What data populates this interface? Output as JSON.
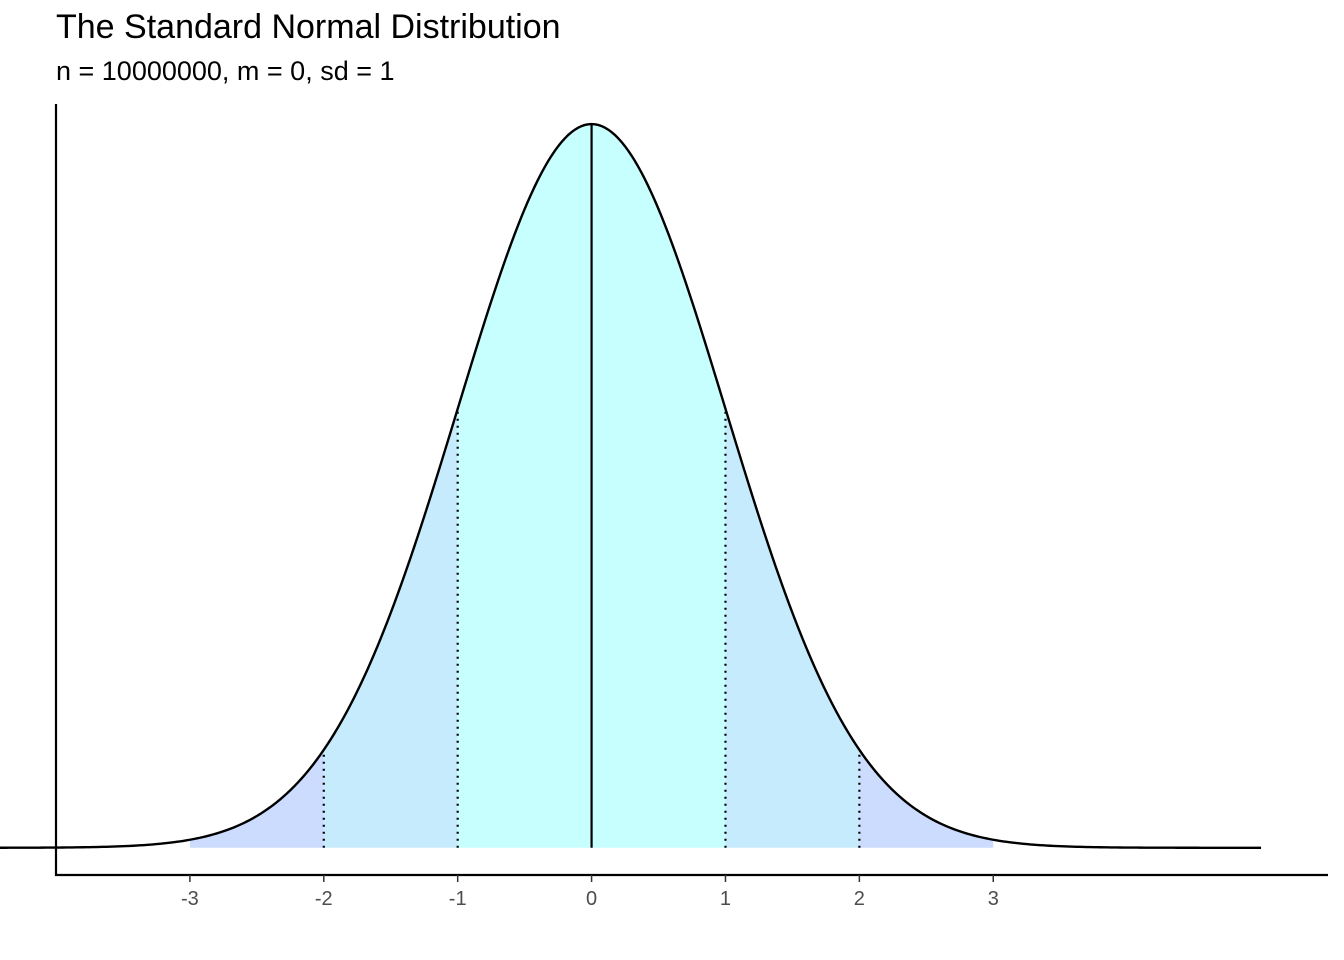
{
  "chart_data": {
    "type": "area",
    "title": "The Standard Normal Distribution",
    "subtitle": "n = 10000000, m = 0, sd = 1",
    "xlabel": "",
    "ylabel": "",
    "x_ticks": [
      "-3",
      "-2",
      "-1",
      "0",
      "1",
      "2",
      "3"
    ],
    "x_tick_values": [
      -3,
      -2,
      -1,
      0,
      1,
      2,
      3
    ],
    "xlim": [
      -4.0,
      5.5
    ],
    "ylim": [
      -0.015,
      0.41
    ],
    "curve": {
      "mean": 0,
      "sd": 1,
      "x_range": [
        -5,
        5
      ],
      "peak_density": 0.399
    },
    "shaded_regions": [
      {
        "from": -3,
        "to": -2,
        "color": "#cbdcff"
      },
      {
        "from": -2,
        "to": -1,
        "color": "#c6ebfd"
      },
      {
        "from": -1,
        "to": 1,
        "color": "#c6fffd"
      },
      {
        "from": 1,
        "to": 2,
        "color": "#c6ebfd"
      },
      {
        "from": 2,
        "to": 3,
        "color": "#cbdcff"
      }
    ],
    "mean_line": {
      "x": 0,
      "style": "solid"
    },
    "sd_lines": {
      "x": [
        -2,
        -1,
        1,
        2
      ],
      "style": "dotted"
    },
    "grid": false,
    "legend": "none",
    "colors": {
      "curve": "#000000",
      "axis": "#000000",
      "tick_label": "#4d4d4d"
    }
  }
}
